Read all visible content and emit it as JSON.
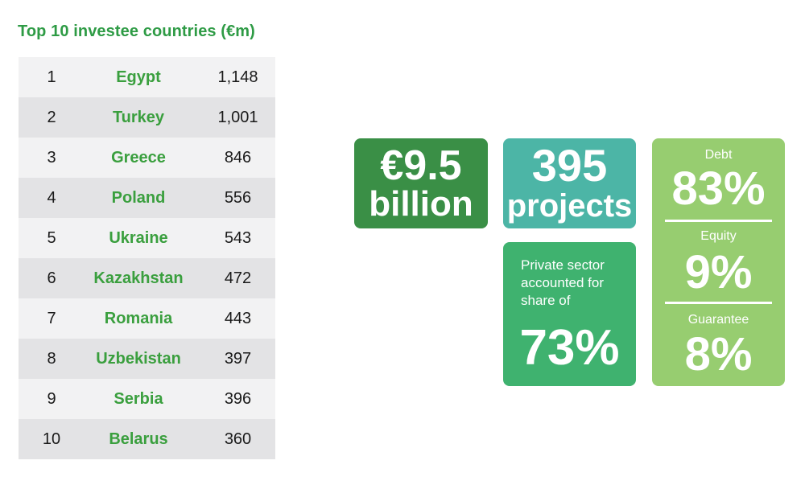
{
  "table_title": "Top 10 investee countries (€m)",
  "rows": [
    {
      "rank": "1",
      "country": "Egypt",
      "value": "1,148"
    },
    {
      "rank": "2",
      "country": "Turkey",
      "value": "1,001"
    },
    {
      "rank": "3",
      "country": "Greece",
      "value": "846"
    },
    {
      "rank": "4",
      "country": "Poland",
      "value": "556"
    },
    {
      "rank": "5",
      "country": "Ukraine",
      "value": "543"
    },
    {
      "rank": "6",
      "country": "Kazakhstan",
      "value": "472"
    },
    {
      "rank": "7",
      "country": "Romania",
      "value": "443"
    },
    {
      "rank": "8",
      "country": "Uzbekistan",
      "value": "397"
    },
    {
      "rank": "9",
      "country": "Serbia",
      "value": "396"
    },
    {
      "rank": "10",
      "country": "Belarus",
      "value": "360"
    }
  ],
  "investment": {
    "amount": "€9.5",
    "unit": "billion"
  },
  "projects": {
    "count": "395",
    "label": "projects"
  },
  "private_sector": {
    "line1": "Private sector",
    "line2": "accounted for",
    "line3": "share of",
    "value": "73%"
  },
  "split": [
    {
      "label": "Debt",
      "value": "83%"
    },
    {
      "label": "Equity",
      "value": "9%"
    },
    {
      "label": "Guarantee",
      "value": "8%"
    }
  ],
  "colors": {
    "title_green": "#2e9b45",
    "country_green": "#3a9f3e",
    "investment_box": "#3a8f46",
    "projects_box": "#4cb5a6",
    "private_box": "#3fb26f",
    "split_box": "#97cd70",
    "row_light": "#f2f2f3",
    "row_dark": "#e3e3e5"
  }
}
